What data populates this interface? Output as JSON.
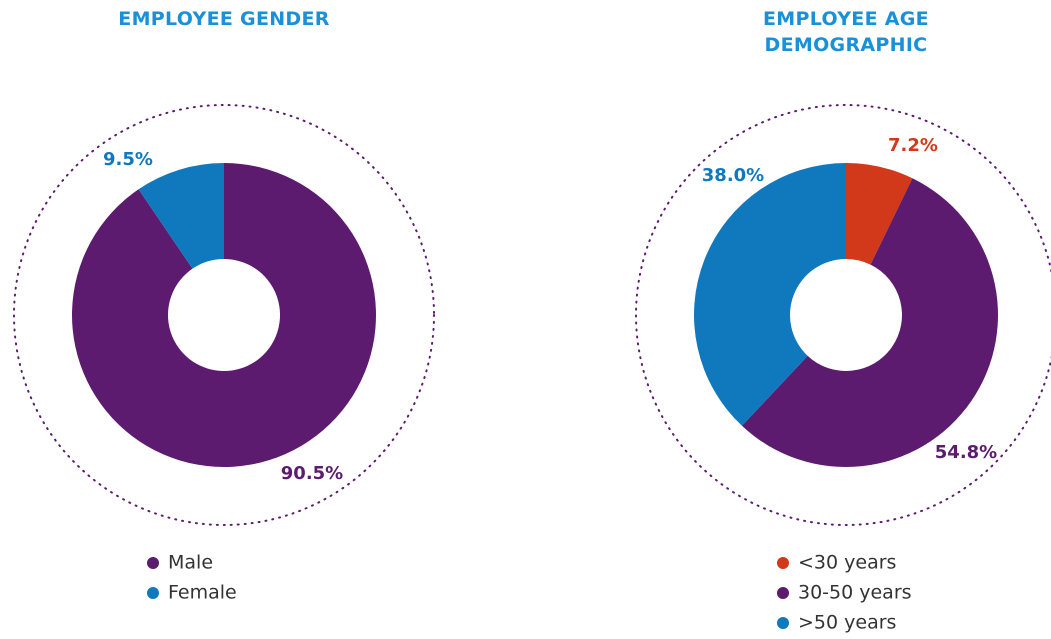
{
  "chart_data": [
    {
      "type": "donut",
      "title": "EMPLOYEE GENDER",
      "categories": [
        "Male",
        "Female"
      ],
      "values": [
        90.5,
        9.5
      ],
      "value_labels": [
        "90.5%",
        "9.5%"
      ],
      "colors": [
        "#5c1b6f",
        "#1079bd"
      ]
    },
    {
      "type": "donut",
      "title": "EMPLOYEE AGE DEMOGRAPHIC",
      "categories": [
        "<30 years",
        "30-50 years",
        ">50 years"
      ],
      "values": [
        7.2,
        54.8,
        38.0
      ],
      "value_labels": [
        "7.2%",
        "54.8%",
        "38.0%"
      ],
      "colors": [
        "#d2391a",
        "#5c1b6f",
        "#1079bd"
      ]
    }
  ]
}
